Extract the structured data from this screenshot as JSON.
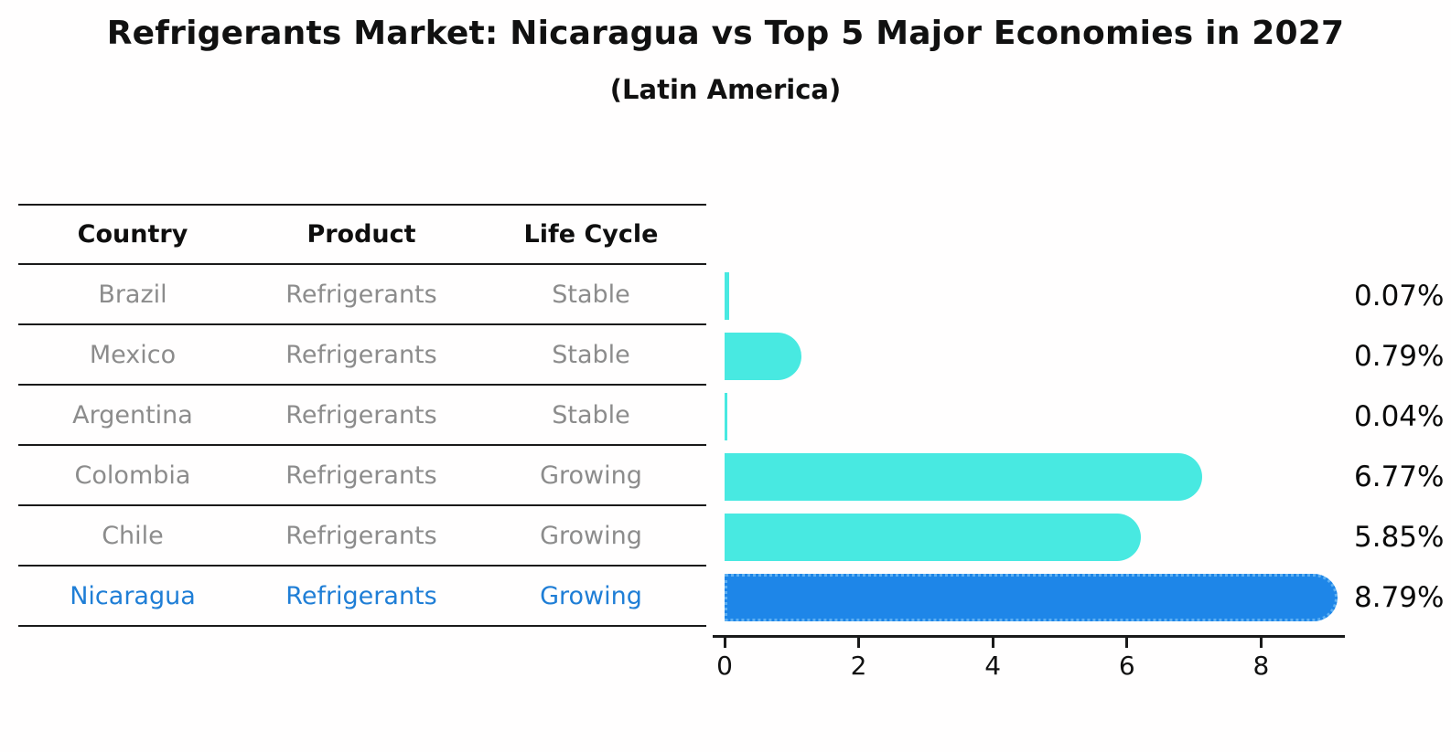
{
  "header": {
    "title": "Refrigerants Market: Nicaragua vs Top 5 Major Economies in 2027",
    "subtitle": "(Latin America)"
  },
  "table": {
    "columns": [
      "Country",
      "Product",
      "Life Cycle"
    ],
    "text_color": "#8c8c8c",
    "highlight_text_color": "#1f7ed6",
    "rows": [
      {
        "country": "Brazil",
        "product": "Refrigerants",
        "life_cycle": "Stable",
        "highlighted": false
      },
      {
        "country": "Mexico",
        "product": "Refrigerants",
        "life_cycle": "Stable",
        "highlighted": false
      },
      {
        "country": "Argentina",
        "product": "Refrigerants",
        "life_cycle": "Stable",
        "highlighted": false
      },
      {
        "country": "Colombia",
        "product": "Refrigerants",
        "life_cycle": "Growing",
        "highlighted": false
      },
      {
        "country": "Chile",
        "product": "Refrigerants",
        "life_cycle": "Growing",
        "highlighted": false
      },
      {
        "country": "Nicaragua",
        "product": "Refrigerants",
        "life_cycle": "Growing",
        "highlighted": true
      }
    ]
  },
  "chart_data": {
    "type": "bar",
    "orientation": "horizontal",
    "title": "Refrigerants Market: Nicaragua vs Top 5 Major Economies in 2027 (Latin America)",
    "categories": [
      "Brazil",
      "Mexico",
      "Argentina",
      "Colombia",
      "Chile",
      "Nicaragua"
    ],
    "values": [
      0.07,
      0.79,
      0.04,
      6.77,
      5.85,
      8.79
    ],
    "value_labels": [
      "0.07%",
      "0.79%",
      "0.04%",
      "6.77%",
      "5.85%",
      "8.79%"
    ],
    "xlabel": "",
    "ylabel": "",
    "xlim": [
      0,
      9.25
    ],
    "xticks": [
      "0",
      "2",
      "4",
      "6",
      "8"
    ],
    "grid": false,
    "legend": false,
    "bar_color": "#48E9E1",
    "highlight_color": "#1E86E8",
    "highlight_border_color": "#5FB0F2",
    "highlight_index": 5,
    "value_label_position": "right-outside"
  }
}
